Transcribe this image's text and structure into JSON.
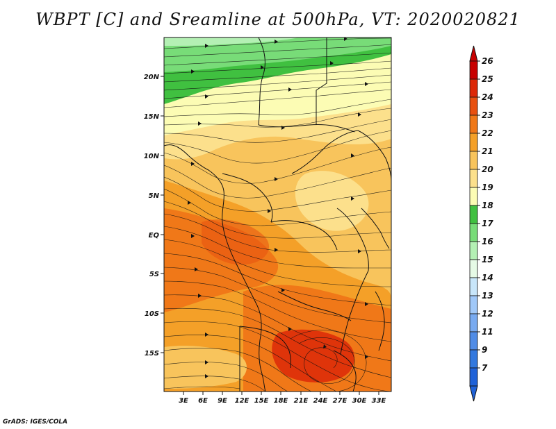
{
  "title": "WBPT [C] and Sreamline at 500hPa, VT: 2020020821",
  "credit": "GrADS: IGES/COLA",
  "colors": {
    "c15": "#40c040",
    "c16": "#78dc78",
    "c17": "#b4f0b4",
    "c18": "#fcfcb4",
    "c19": "#fce08c",
    "c20": "#f8c45c",
    "c21": "#f4a028",
    "c22": "#f07818",
    "c23": "#e85010",
    "c24": "#dc2808",
    "c25": "#c80000",
    "blue_low": "#1f62d8"
  },
  "map": {
    "lon_ticks": [
      "3E",
      "6E",
      "9E",
      "12E",
      "15E",
      "18E",
      "21E",
      "24E",
      "27E",
      "30E",
      "33E"
    ],
    "lat_ticks": [
      "20N",
      "15N",
      "10N",
      "5N",
      "EQ",
      "5S",
      "10S",
      "15S"
    ]
  },
  "colorbar": {
    "labels": [
      "26",
      "25",
      "24",
      "23",
      "22",
      "21",
      "20",
      "19",
      "18",
      "17",
      "16",
      "15",
      "14",
      "13",
      "12",
      "11",
      "9",
      "7"
    ],
    "colors": [
      "#c80000",
      "#dc2808",
      "#e85010",
      "#f07818",
      "#f4a028",
      "#f8c45c",
      "#fce08c",
      "#fcfcb4",
      "#40c040",
      "#78dc78",
      "#b4f0b4",
      "#e6fae6",
      "#c8e6fa",
      "#a0c8f8",
      "#78aaf0",
      "#508ce6",
      "#3278de",
      "#1f62d8"
    ]
  }
}
